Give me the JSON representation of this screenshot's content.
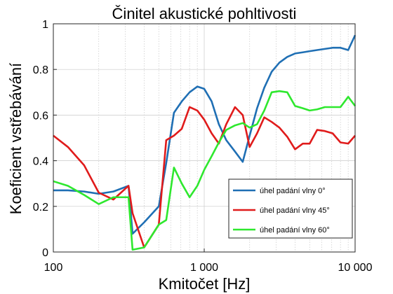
{
  "chart_data": {
    "type": "line",
    "title": "Činitel akustické pohltivosti",
    "xlabel": "Kmitočet [Hz]",
    "ylabel": "Koeficient vstřebávání",
    "xscale": "log",
    "xlim": [
      100,
      10000
    ],
    "ylim": [
      0,
      1
    ],
    "xticks": [
      100,
      1000,
      10000
    ],
    "xtick_labels": [
      "100",
      "1 000",
      "10 000"
    ],
    "yticks": [
      0,
      0.2,
      0.4,
      0.6,
      0.8,
      1
    ],
    "ytick_labels": [
      "0",
      "0.2",
      "0.4",
      "0.6",
      "0.8",
      "1"
    ],
    "grid": true,
    "legend_position": "bottom-right",
    "series": [
      {
        "name": "úhel padání vlny 0°",
        "color": "#1f6fb4",
        "x": [
          100,
          125,
          160,
          200,
          250,
          315,
          335,
          400,
          500,
          560,
          630,
          710,
          800,
          900,
          1000,
          1120,
          1250,
          1400,
          1600,
          1800,
          2000,
          2240,
          2500,
          2800,
          3150,
          3550,
          4000,
          4500,
          5000,
          5600,
          6300,
          7100,
          8000,
          9000,
          10000
        ],
        "y": [
          0.27,
          0.27,
          0.265,
          0.255,
          0.265,
          0.29,
          0.08,
          0.13,
          0.2,
          0.39,
          0.61,
          0.66,
          0.7,
          0.725,
          0.715,
          0.66,
          0.56,
          0.49,
          0.44,
          0.395,
          0.51,
          0.63,
          0.72,
          0.79,
          0.83,
          0.855,
          0.87,
          0.875,
          0.88,
          0.885,
          0.89,
          0.895,
          0.895,
          0.885,
          0.95
        ]
      },
      {
        "name": "úhel padání vlny 45°",
        "color": "#e01b1b",
        "x": [
          100,
          125,
          160,
          200,
          250,
          315,
          335,
          400,
          500,
          560,
          630,
          710,
          800,
          900,
          1000,
          1120,
          1250,
          1400,
          1600,
          1800,
          2000,
          2240,
          2500,
          2800,
          3150,
          3550,
          4000,
          4500,
          5000,
          5600,
          6300,
          7100,
          8000,
          9000,
          10000
        ],
        "y": [
          0.51,
          0.46,
          0.38,
          0.26,
          0.23,
          0.29,
          0.17,
          0.02,
          0.12,
          0.49,
          0.51,
          0.54,
          0.635,
          0.62,
          0.58,
          0.52,
          0.475,
          0.56,
          0.635,
          0.6,
          0.46,
          0.52,
          0.59,
          0.57,
          0.545,
          0.505,
          0.45,
          0.475,
          0.475,
          0.535,
          0.53,
          0.52,
          0.48,
          0.475,
          0.51
        ]
      },
      {
        "name": "úhel padání vlny 60°",
        "color": "#2ee82e",
        "x": [
          100,
          125,
          160,
          200,
          250,
          315,
          335,
          400,
          500,
          560,
          630,
          710,
          800,
          900,
          1000,
          1120,
          1250,
          1400,
          1600,
          1800,
          2000,
          2240,
          2500,
          2800,
          3150,
          3550,
          4000,
          4500,
          5000,
          5600,
          6300,
          7100,
          8000,
          9000,
          10000
        ],
        "y": [
          0.31,
          0.29,
          0.25,
          0.21,
          0.24,
          0.24,
          0.01,
          0.02,
          0.12,
          0.14,
          0.37,
          0.3,
          0.24,
          0.29,
          0.36,
          0.42,
          0.48,
          0.535,
          0.555,
          0.565,
          0.545,
          0.56,
          0.62,
          0.7,
          0.705,
          0.7,
          0.64,
          0.63,
          0.62,
          0.625,
          0.635,
          0.635,
          0.635,
          0.68,
          0.64
        ]
      }
    ]
  }
}
